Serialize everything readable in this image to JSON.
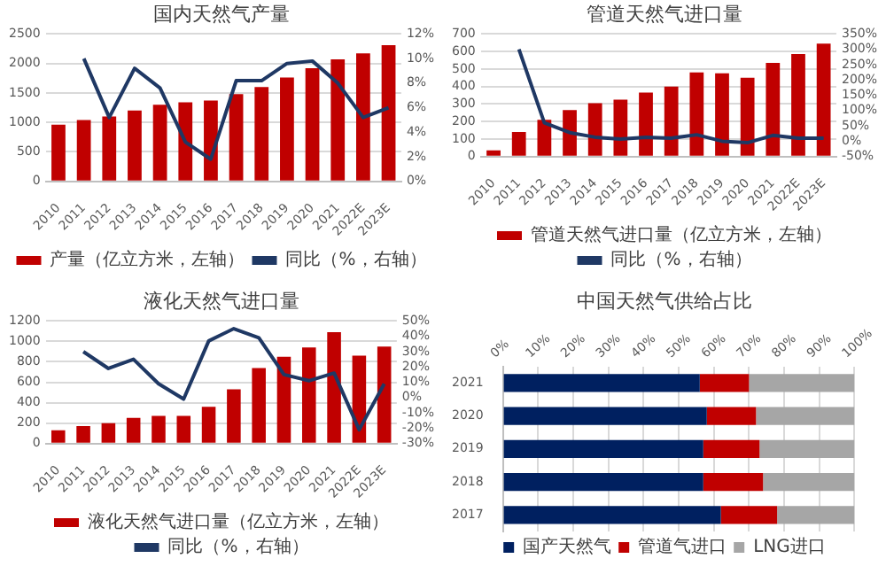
{
  "chart_data": [
    {
      "type": "bar",
      "title": "国内天然气产量",
      "categories": [
        "2010",
        "2011",
        "2012",
        "2013",
        "2014",
        "2015",
        "2016",
        "2017",
        "2018",
        "2019",
        "2020",
        "2021",
        "2022E",
        "2023E"
      ],
      "series": [
        {
          "name": "产量（亿立方米，左轴）",
          "color": "#c00000",
          "values": [
            960,
            1040,
            1100,
            1200,
            1300,
            1340,
            1370,
            1480,
            1600,
            1760,
            1920,
            2070,
            2170,
            2310
          ]
        },
        {
          "name": "同比（%，右轴）",
          "type": "line",
          "axis": "y2",
          "color": "#1f3864",
          "values": [
            null,
            10,
            5.2,
            9.2,
            7.6,
            3.2,
            1.8,
            8.2,
            8.2,
            9.6,
            9.8,
            8,
            5.2,
            6
          ]
        }
      ],
      "ylim": [
        0,
        2500
      ],
      "yticks": [
        0,
        500,
        1000,
        1500,
        2000,
        2500
      ],
      "y2lim": [
        0,
        12
      ],
      "y2ticks": [
        {
          "value": 0,
          "label": "0%"
        },
        {
          "value": 2,
          "label": "2%"
        },
        {
          "value": 4,
          "label": "4%"
        },
        {
          "value": 6,
          "label": "6%"
        },
        {
          "value": 8,
          "label": "8%"
        },
        {
          "value": 10,
          "label": "10%"
        },
        {
          "value": 12,
          "label": "12%"
        }
      ],
      "grid": "y",
      "legend": "bottom",
      "marker": "none"
    },
    {
      "type": "bar",
      "title": "管道天然气进口量",
      "categories": [
        "2010",
        "2011",
        "2012",
        "2013",
        "2014",
        "2015",
        "2016",
        "2017",
        "2018",
        "2019",
        "2020",
        "2021",
        "2022E",
        "2023E"
      ],
      "series": [
        {
          "name": "管道天然气进口量（亿立方米，左轴）",
          "color": "#c00000",
          "values": [
            35,
            140,
            210,
            265,
            305,
            325,
            365,
            400,
            480,
            475,
            450,
            535,
            585,
            645
          ]
        },
        {
          "name": "同比（%，右轴）",
          "type": "line",
          "axis": "y2",
          "color": "#1f3864",
          "values": [
            null,
            300,
            60,
            28,
            13,
            7,
            13,
            10,
            21,
            0,
            -5,
            19,
            10,
            10
          ]
        }
      ],
      "ylim": [
        0,
        700
      ],
      "yticks": [
        0,
        100,
        200,
        300,
        400,
        500,
        600,
        700
      ],
      "y2lim": [
        -50,
        350
      ],
      "y2ticks": [
        {
          "value": -50,
          "label": "-50%"
        },
        {
          "value": 0,
          "label": "0%"
        },
        {
          "value": 50,
          "label": "50%"
        },
        {
          "value": 100,
          "label": "100%"
        },
        {
          "value": 150,
          "label": "150%"
        },
        {
          "value": 200,
          "label": "200%"
        },
        {
          "value": 250,
          "label": "250%"
        },
        {
          "value": 300,
          "label": "300%"
        },
        {
          "value": 350,
          "label": "350%"
        }
      ],
      "grid": "y",
      "legend": "bottom",
      "marker": "none"
    },
    {
      "type": "bar",
      "title": "液化天然气进口量",
      "categories": [
        "2010",
        "2011",
        "2012",
        "2013",
        "2014",
        "2015",
        "2016",
        "2017",
        "2018",
        "2019",
        "2020",
        "2021",
        "2022E",
        "2023E"
      ],
      "series": [
        {
          "name": "液化天然气进口量（亿立方米，左轴）",
          "color": "#c00000",
          "values": [
            130,
            170,
            200,
            250,
            270,
            270,
            360,
            530,
            740,
            850,
            940,
            1090,
            860,
            950
          ]
        },
        {
          "name": "同比（%，右轴）",
          "type": "line",
          "axis": "y2",
          "color": "#1f3864",
          "values": [
            null,
            30,
            19,
            25,
            9,
            -1,
            37,
            45,
            39,
            15,
            11,
            16,
            -21,
            9
          ]
        }
      ],
      "ylim": [
        0,
        1200
      ],
      "yticks": [
        0,
        200,
        400,
        600,
        800,
        1000,
        1200
      ],
      "y2lim": [
        -30,
        50
      ],
      "y2ticks": [
        {
          "value": -30,
          "label": "-30%"
        },
        {
          "value": -20,
          "label": "-20%"
        },
        {
          "value": -10,
          "label": "-10%"
        },
        {
          "value": 0,
          "label": "0%"
        },
        {
          "value": 10,
          "label": "10%"
        },
        {
          "value": 20,
          "label": "20%"
        },
        {
          "value": 30,
          "label": "30%"
        },
        {
          "value": 40,
          "label": "40%"
        },
        {
          "value": 50,
          "label": "50%"
        }
      ],
      "grid": "y",
      "legend": "bottom",
      "marker": "none"
    },
    {
      "type": "bar",
      "title": "中国天然气供给占比",
      "orientation": "horizontal",
      "stacked": true,
      "categories": [
        "2021",
        "2020",
        "2019",
        "2018",
        "2017"
      ],
      "series": [
        {
          "name": "国产天然气",
          "color": "#002060",
          "values": [
            56,
            58,
            57,
            57,
            62
          ]
        },
        {
          "name": "管道气进口",
          "color": "#c00000",
          "values": [
            14,
            14,
            16,
            17,
            16
          ]
        },
        {
          "name": "LNG进口",
          "color": "#a6a6a6",
          "values": [
            30,
            28,
            27,
            26,
            22
          ]
        }
      ],
      "xlim": [
        0,
        100
      ],
      "xticks": [
        {
          "value": 0,
          "label": "0%"
        },
        {
          "value": 10,
          "label": "10%"
        },
        {
          "value": 20,
          "label": "20%"
        },
        {
          "value": 30,
          "label": "30%"
        },
        {
          "value": 40,
          "label": "40%"
        },
        {
          "value": 50,
          "label": "50%"
        },
        {
          "value": 60,
          "label": "60%"
        },
        {
          "value": 70,
          "label": "70%"
        },
        {
          "value": 80,
          "label": "80%"
        },
        {
          "value": 90,
          "label": "90%"
        },
        {
          "value": 100,
          "label": "100%"
        }
      ],
      "grid": "x",
      "legend": "bottom"
    }
  ]
}
